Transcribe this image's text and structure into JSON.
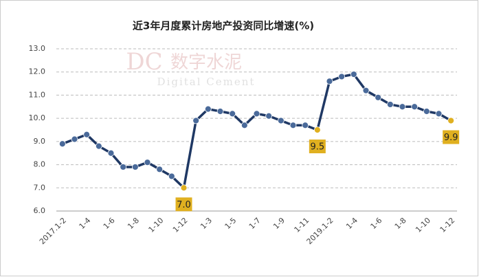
{
  "chart_data": {
    "type": "line",
    "title": "近3年月度累计房地产投资同比增速(%)",
    "watermark": {
      "logo": "DC",
      "name": "数字水泥",
      "subtitle": "Digital Cement"
    },
    "categories": [
      "2017.1-2",
      null,
      "1-4",
      null,
      "1-6",
      null,
      "1-8",
      null,
      "1-10",
      null,
      "1-12",
      null,
      "1-3",
      null,
      "1-5",
      null,
      "1-7",
      null,
      "1-9",
      null,
      "1-11",
      null,
      "2019.1-2",
      null,
      "1-4",
      null,
      "1-6",
      null,
      "1-8",
      null,
      "1-10",
      null,
      "1-12"
    ],
    "series": [
      {
        "name": "房地产投资同比增速",
        "color": "#1f3864",
        "marker_color": "#4a6a9a",
        "highlight_color": "#e0b020",
        "values": [
          8.9,
          9.1,
          9.3,
          8.8,
          8.5,
          7.9,
          7.9,
          8.1,
          7.8,
          7.5,
          7.0,
          9.9,
          10.4,
          10.3,
          10.2,
          9.7,
          10.2,
          10.1,
          9.9,
          9.7,
          9.7,
          9.5,
          11.6,
          11.8,
          11.9,
          11.2,
          10.9,
          10.6,
          10.5,
          10.5,
          10.3,
          10.2,
          9.9
        ],
        "value_labels": [
          null,
          null,
          null,
          null,
          null,
          null,
          null,
          null,
          null,
          null,
          "7.0",
          null,
          null,
          null,
          null,
          null,
          null,
          null,
          null,
          null,
          null,
          "9.5",
          null,
          null,
          null,
          null,
          null,
          null,
          null,
          null,
          null,
          null,
          "9.9"
        ]
      }
    ],
    "ylim": [
      6,
      13
    ],
    "yticks": [
      {
        "value": 6,
        "label": "6.0"
      },
      {
        "value": 7,
        "label": "7.0"
      },
      {
        "value": 8,
        "label": "8.0"
      },
      {
        "value": 9,
        "label": "9.0"
      },
      {
        "value": 10,
        "label": "10.0"
      },
      {
        "value": 11,
        "label": "11.0"
      },
      {
        "value": 12,
        "label": "12.0"
      },
      {
        "value": 13,
        "label": "13.0"
      }
    ],
    "grid": true
  }
}
